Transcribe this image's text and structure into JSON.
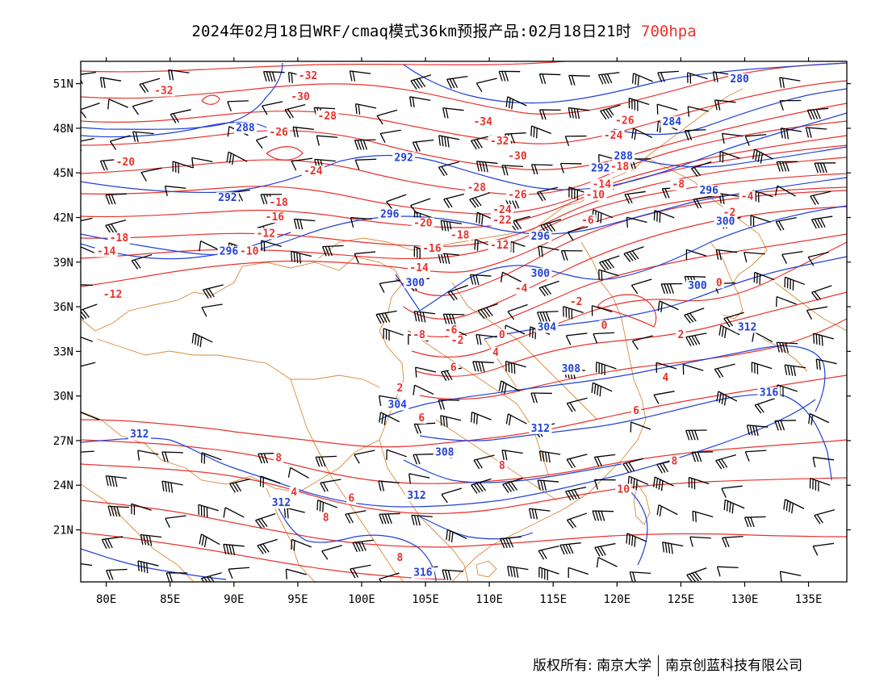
{
  "title": {
    "text": "2024年02月18日WRF/cmaq模式36km预报产品:02月18日21时",
    "level": "700hpa",
    "level_color": "#e8322c"
  },
  "map": {
    "lon_range": [
      78,
      138
    ],
    "lat_range": [
      17.5,
      52.5
    ],
    "x_ticks": [
      {
        "lon": 80,
        "label": "80E"
      },
      {
        "lon": 85,
        "label": "85E"
      },
      {
        "lon": 90,
        "label": "90E"
      },
      {
        "lon": 95,
        "label": "95E"
      },
      {
        "lon": 100,
        "label": "100E"
      },
      {
        "lon": 105,
        "label": "105E"
      },
      {
        "lon": 110,
        "label": "110E"
      },
      {
        "lon": 115,
        "label": "115E"
      },
      {
        "lon": 120,
        "label": "120E"
      },
      {
        "lon": 125,
        "label": "125E"
      },
      {
        "lon": 130,
        "label": "130E"
      },
      {
        "lon": 135,
        "label": "135E"
      }
    ],
    "y_ticks": [
      {
        "lat": 21,
        "label": "21N"
      },
      {
        "lat": 24,
        "label": "24N"
      },
      {
        "lat": 27,
        "label": "27N"
      },
      {
        "lat": 30,
        "label": "30N"
      },
      {
        "lat": 33,
        "label": "33N"
      },
      {
        "lat": 36,
        "label": "36N"
      },
      {
        "lat": 39,
        "label": "39N"
      },
      {
        "lat": 42,
        "label": "42N"
      },
      {
        "lat": 45,
        "label": "45N"
      },
      {
        "lat": 48,
        "label": "48N"
      },
      {
        "lat": 51,
        "label": "51N"
      }
    ],
    "colors": {
      "temperature": "#e8322c",
      "height": "#2040d8",
      "border": "#d98a3a",
      "wind": "#000000"
    },
    "temperature_labels": [
      {
        "text": "-32",
        "lon": 84.5,
        "lat": 50.3
      },
      {
        "text": "-32",
        "lon": 95.8,
        "lat": 51.3
      },
      {
        "text": "-30",
        "lon": 95.2,
        "lat": 49.9
      },
      {
        "text": "-28",
        "lon": 97.3,
        "lat": 48.6
      },
      {
        "text": "-26",
        "lon": 93.5,
        "lat": 47.5
      },
      {
        "text": "-20",
        "lon": 81.5,
        "lat": 45.5
      },
      {
        "text": "-24",
        "lon": 96.2,
        "lat": 44.9
      },
      {
        "text": "-18",
        "lon": 93.5,
        "lat": 42.8
      },
      {
        "text": "-16",
        "lon": 93.2,
        "lat": 41.8
      },
      {
        "text": "-12",
        "lon": 92.5,
        "lat": 40.7
      },
      {
        "text": "-10",
        "lon": 91.2,
        "lat": 39.5
      },
      {
        "text": "-18",
        "lon": 81.0,
        "lat": 40.4
      },
      {
        "text": "-14",
        "lon": 80.0,
        "lat": 39.5
      },
      {
        "text": "-12",
        "lon": 80.5,
        "lat": 36.6
      },
      {
        "text": "-34",
        "lon": 109.5,
        "lat": 48.2
      },
      {
        "text": "-32",
        "lon": 110.8,
        "lat": 46.9
      },
      {
        "text": "-30",
        "lon": 112.2,
        "lat": 45.9
      },
      {
        "text": "-28",
        "lon": 109.0,
        "lat": 43.8
      },
      {
        "text": "-26",
        "lon": 112.2,
        "lat": 43.3
      },
      {
        "text": "-24",
        "lon": 111.0,
        "lat": 42.3
      },
      {
        "text": "-22",
        "lon": 111.0,
        "lat": 41.6
      },
      {
        "text": "-20",
        "lon": 104.8,
        "lat": 41.4
      },
      {
        "text": "-18",
        "lon": 107.7,
        "lat": 40.6
      },
      {
        "text": "-16",
        "lon": 105.5,
        "lat": 39.7
      },
      {
        "text": "-12",
        "lon": 110.8,
        "lat": 39.9
      },
      {
        "text": "-14",
        "lon": 104.5,
        "lat": 38.4
      },
      {
        "text": "-26",
        "lon": 120.6,
        "lat": 48.3
      },
      {
        "text": "-24",
        "lon": 119.7,
        "lat": 47.3
      },
      {
        "text": "-18",
        "lon": 120.2,
        "lat": 45.2
      },
      {
        "text": "-14",
        "lon": 118.8,
        "lat": 44.0
      },
      {
        "text": "-10",
        "lon": 118.3,
        "lat": 43.3
      },
      {
        "text": "-8",
        "lon": 124.8,
        "lat": 44.0
      },
      {
        "text": "-4",
        "lon": 130.2,
        "lat": 43.2
      },
      {
        "text": "-2",
        "lon": 128.8,
        "lat": 42.1
      },
      {
        "text": "-6",
        "lon": 117.7,
        "lat": 41.6
      },
      {
        "text": "-4",
        "lon": 112.5,
        "lat": 37.0
      },
      {
        "text": "-2",
        "lon": 116.8,
        "lat": 36.1
      },
      {
        "text": "0",
        "lon": 119.0,
        "lat": 34.5
      },
      {
        "text": "0",
        "lon": 128.0,
        "lat": 37.4
      },
      {
        "text": "2",
        "lon": 125.0,
        "lat": 33.9
      },
      {
        "text": "-8",
        "lon": 104.5,
        "lat": 33.9
      },
      {
        "text": "-6",
        "lon": 107.0,
        "lat": 34.2
      },
      {
        "text": "-2",
        "lon": 107.5,
        "lat": 33.5
      },
      {
        "text": "0",
        "lon": 111.0,
        "lat": 33.9
      },
      {
        "text": "4",
        "lon": 110.5,
        "lat": 32.7
      },
      {
        "text": "6",
        "lon": 107.2,
        "lat": 31.7
      },
      {
        "text": "2",
        "lon": 103.0,
        "lat": 30.3
      },
      {
        "text": "4",
        "lon": 123.8,
        "lat": 31.0
      },
      {
        "text": "6",
        "lon": 104.7,
        "lat": 28.3
      },
      {
        "text": "6",
        "lon": 121.5,
        "lat": 28.8
      },
      {
        "text": "8",
        "lon": 107.0,
        "lat": 25.8
      },
      {
        "text": "8",
        "lon": 93.5,
        "lat": 25.6
      },
      {
        "text": "8",
        "lon": 111.0,
        "lat": 25.1
      },
      {
        "text": "8",
        "lon": 124.5,
        "lat": 25.4
      },
      {
        "text": "4",
        "lon": 94.7,
        "lat": 23.3
      },
      {
        "text": "6",
        "lon": 99.2,
        "lat": 22.9
      },
      {
        "text": "8",
        "lon": 97.2,
        "lat": 21.6
      },
      {
        "text": "10",
        "lon": 120.5,
        "lat": 23.5
      },
      {
        "text": "8",
        "lon": 103.0,
        "lat": 18.9
      }
    ],
    "height_labels": [
      {
        "text": "288",
        "lon": 90.9,
        "lat": 47.8
      },
      {
        "text": "292",
        "lon": 103.3,
        "lat": 45.8
      },
      {
        "text": "292",
        "lon": 89.5,
        "lat": 43.1
      },
      {
        "text": "296",
        "lon": 102.2,
        "lat": 42.0
      },
      {
        "text": "296",
        "lon": 89.6,
        "lat": 39.5
      },
      {
        "text": "300",
        "lon": 104.2,
        "lat": 37.4
      },
      {
        "text": "296",
        "lon": 114.0,
        "lat": 40.5
      },
      {
        "text": "300",
        "lon": 114.0,
        "lat": 38.0
      },
      {
        "text": "300",
        "lon": 128.5,
        "lat": 41.5
      },
      {
        "text": "296",
        "lon": 127.2,
        "lat": 43.6
      },
      {
        "text": "292",
        "lon": 118.7,
        "lat": 45.1
      },
      {
        "text": "288",
        "lon": 120.5,
        "lat": 45.9
      },
      {
        "text": "284",
        "lon": 124.3,
        "lat": 48.2
      },
      {
        "text": "280",
        "lon": 129.6,
        "lat": 51.1
      },
      {
        "text": "300",
        "lon": 126.3,
        "lat": 37.2
      },
      {
        "text": "304",
        "lon": 114.5,
        "lat": 34.4
      },
      {
        "text": "308",
        "lon": 116.4,
        "lat": 31.6
      },
      {
        "text": "312",
        "lon": 130.2,
        "lat": 34.4
      },
      {
        "text": "316",
        "lon": 131.9,
        "lat": 30.0
      },
      {
        "text": "304",
        "lon": 102.8,
        "lat": 29.2
      },
      {
        "text": "308",
        "lon": 106.5,
        "lat": 26.0
      },
      {
        "text": "312",
        "lon": 114.0,
        "lat": 27.6
      },
      {
        "text": "312",
        "lon": 82.6,
        "lat": 27.2
      },
      {
        "text": "312",
        "lon": 93.7,
        "lat": 22.6
      },
      {
        "text": "312",
        "lon": 104.3,
        "lat": 23.1
      },
      {
        "text": "316",
        "lon": 104.8,
        "lat": 17.9
      }
    ]
  },
  "footer": {
    "owner": "版权所有: 南京大学",
    "company": "南京创蓝科技有限公司"
  }
}
